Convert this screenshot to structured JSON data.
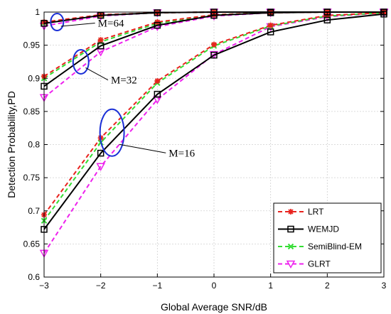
{
  "chart_data": {
    "type": "line",
    "xlabel": "Global Average SNR/dB",
    "ylabel": "Detection Probability,PD",
    "xlim": [
      -3,
      3
    ],
    "ylim": [
      0.6,
      1
    ],
    "xticks": [
      "−3",
      "−2",
      "−1",
      "0",
      "1",
      "2",
      "3"
    ],
    "yticks": [
      "0.6",
      "0.65",
      "0.7",
      "0.75",
      "0.8",
      "0.85",
      "0.9",
      "0.95",
      "1"
    ],
    "grid": true,
    "legend_position": "bottom-right",
    "x": [
      -3,
      -2,
      -1,
      0,
      1,
      2,
      3
    ],
    "series": [
      {
        "name": "LRT",
        "group": "M=64",
        "color": "#e8231e",
        "dash": "6 4",
        "marker": "star",
        "values": [
          0.985,
          0.996,
          0.999,
          1.0,
          1.0,
          1.0,
          1.0
        ]
      },
      {
        "name": "WEMJD",
        "group": "M=64",
        "color": "#000000",
        "dash": "",
        "marker": "square",
        "values": [
          0.983,
          0.995,
          0.999,
          1.0,
          1.0,
          1.0,
          1.0
        ]
      },
      {
        "name": "SemiBlind-EM",
        "group": "M=64",
        "color": "#33dd33",
        "dash": "6 4",
        "marker": "x",
        "values": [
          0.984,
          0.995,
          0.999,
          1.0,
          1.0,
          1.0,
          1.0
        ]
      },
      {
        "name": "GLRT",
        "group": "M=64",
        "color": "#ee22ee",
        "dash": "6 4",
        "marker": "triangle",
        "values": [
          0.979,
          0.994,
          0.999,
          1.0,
          1.0,
          1.0,
          1.0
        ]
      },
      {
        "name": "LRT",
        "group": "M=32",
        "color": "#e8231e",
        "dash": "6 4",
        "marker": "star",
        "values": [
          0.903,
          0.958,
          0.985,
          0.996,
          0.999,
          1.0,
          1.0
        ]
      },
      {
        "name": "WEMJD",
        "group": "M=32",
        "color": "#000000",
        "dash": "",
        "marker": "square",
        "values": [
          0.888,
          0.949,
          0.98,
          0.995,
          0.999,
          1.0,
          1.0
        ]
      },
      {
        "name": "SemiBlind-EM",
        "group": "M=32",
        "color": "#33dd33",
        "dash": "6 4",
        "marker": "x",
        "values": [
          0.9,
          0.955,
          0.983,
          0.996,
          0.999,
          1.0,
          1.0
        ]
      },
      {
        "name": "GLRT",
        "group": "M=32",
        "color": "#ee22ee",
        "dash": "6 4",
        "marker": "triangle",
        "values": [
          0.871,
          0.94,
          0.978,
          0.994,
          0.999,
          1.0,
          1.0
        ]
      },
      {
        "name": "LRT",
        "group": "M=16",
        "color": "#e8231e",
        "dash": "6 4",
        "marker": "star",
        "values": [
          0.694,
          0.81,
          0.896,
          0.951,
          0.98,
          0.995,
          0.999
        ]
      },
      {
        "name": "WEMJD",
        "group": "M=16",
        "color": "#000000",
        "dash": "",
        "marker": "square",
        "values": [
          0.672,
          0.787,
          0.876,
          0.935,
          0.97,
          0.988,
          0.997
        ]
      },
      {
        "name": "SemiBlind-EM",
        "group": "M=16",
        "color": "#33dd33",
        "dash": "6 4",
        "marker": "x",
        "values": [
          0.685,
          0.803,
          0.893,
          0.949,
          0.979,
          0.994,
          0.999
        ]
      },
      {
        "name": "GLRT",
        "group": "M=16",
        "color": "#ee22ee",
        "dash": "6 4",
        "marker": "triangle",
        "values": [
          0.636,
          0.767,
          0.868,
          0.936,
          0.978,
          0.993,
          0.999
        ]
      }
    ],
    "annotations": [
      {
        "text": "M=64",
        "ellipse_at": [
          -2.77,
          0.985
        ],
        "label_at": [
          -2.05,
          0.978
        ]
      },
      {
        "text": "M=32",
        "ellipse_at": [
          -2.35,
          0.925
        ],
        "label_at": [
          -1.82,
          0.892
        ]
      },
      {
        "text": "M=16",
        "ellipse_at": [
          -1.8,
          0.818
        ],
        "label_at": [
          -0.8,
          0.782
        ]
      }
    ],
    "legend": [
      {
        "name": "LRT",
        "color": "#e8231e",
        "dash": "6 4",
        "marker": "star"
      },
      {
        "name": "WEMJD",
        "color": "#000000",
        "dash": "",
        "marker": "square"
      },
      {
        "name": "SemiBlind-EM",
        "color": "#33dd33",
        "dash": "6 4",
        "marker": "x"
      },
      {
        "name": "GLRT",
        "color": "#ee22ee",
        "dash": "6 4",
        "marker": "triangle"
      }
    ]
  }
}
